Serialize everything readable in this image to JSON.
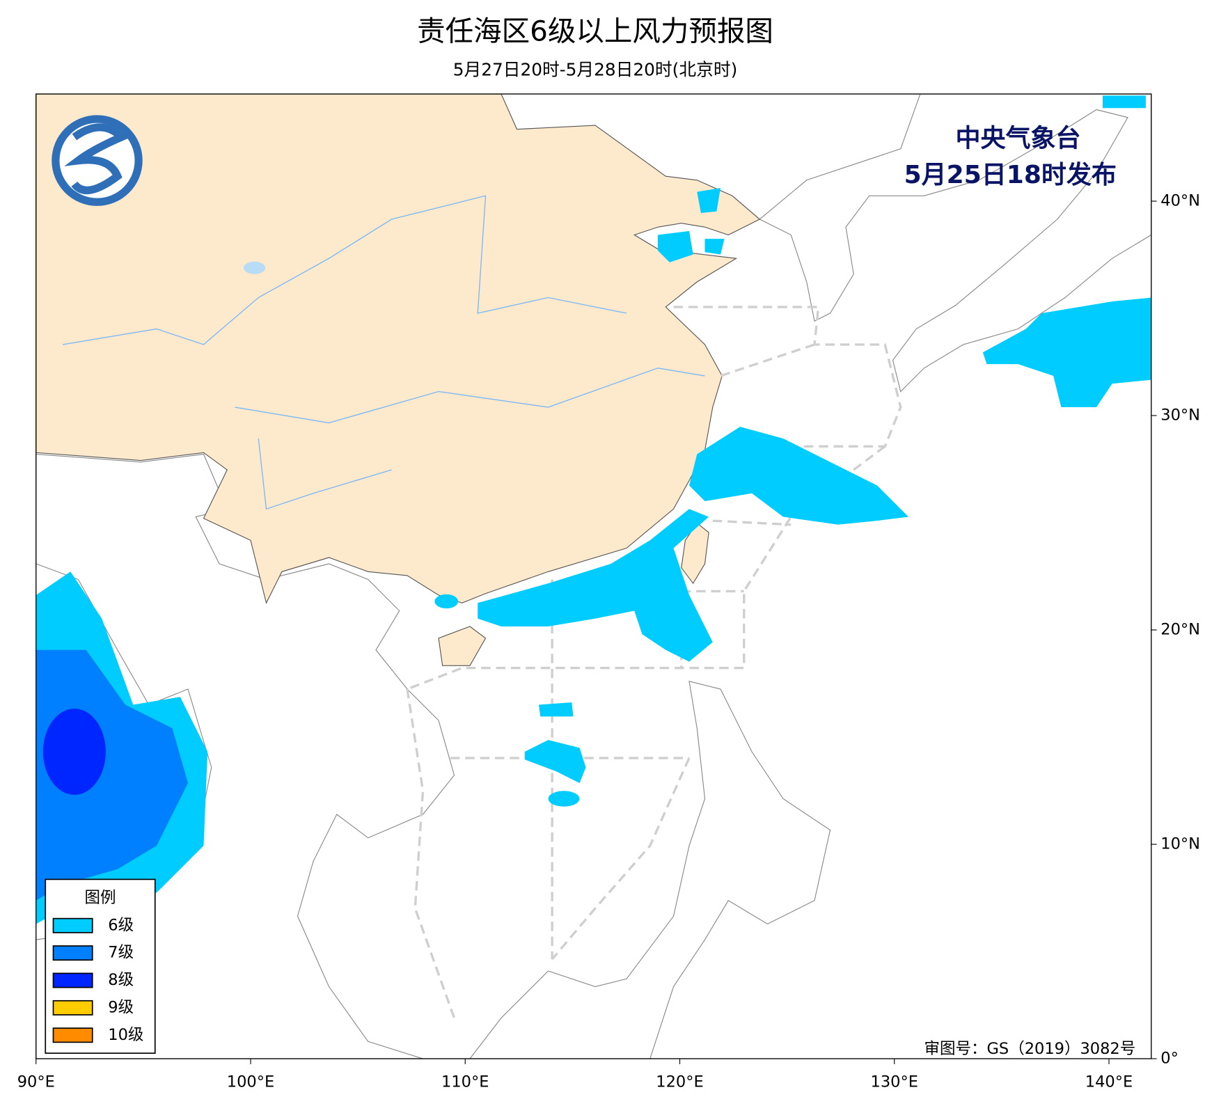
{
  "title": "责任海区6级以上风力预报图",
  "subtitle": "5月27日20时-5月28日20时(北京时)",
  "issuer": "中央气象台",
  "issue_time": "5月25日18时发布",
  "legend": {
    "title": "图例",
    "items": [
      {
        "label": "6级",
        "color": "#00ccff"
      },
      {
        "label": "7级",
        "color": "#0080ff"
      },
      {
        "label": "8级",
        "color": "#0026ff"
      },
      {
        "label": "9级",
        "color": "#ffcc00"
      },
      {
        "label": "10级",
        "color": "#ff8c00"
      }
    ]
  },
  "map": {
    "xlim": [
      90,
      142
    ],
    "ylim": [
      0,
      45
    ],
    "xticks": [
      {
        "value": 90,
        "label": "90°E"
      },
      {
        "value": 100,
        "label": "100°E"
      },
      {
        "value": 110,
        "label": "110°E"
      },
      {
        "value": 120,
        "label": "120°E"
      },
      {
        "value": 130,
        "label": "130°E"
      },
      {
        "value": 140,
        "label": "140°E"
      }
    ],
    "yticks": [
      {
        "value": 0,
        "label": "0°"
      },
      {
        "value": 10,
        "label": "10°N"
      },
      {
        "value": 20,
        "label": "20°N"
      },
      {
        "value": 30,
        "label": "30°N"
      },
      {
        "value": 40,
        "label": "40°N"
      }
    ]
  },
  "approval": "审图号：GS（2019）3082号"
}
